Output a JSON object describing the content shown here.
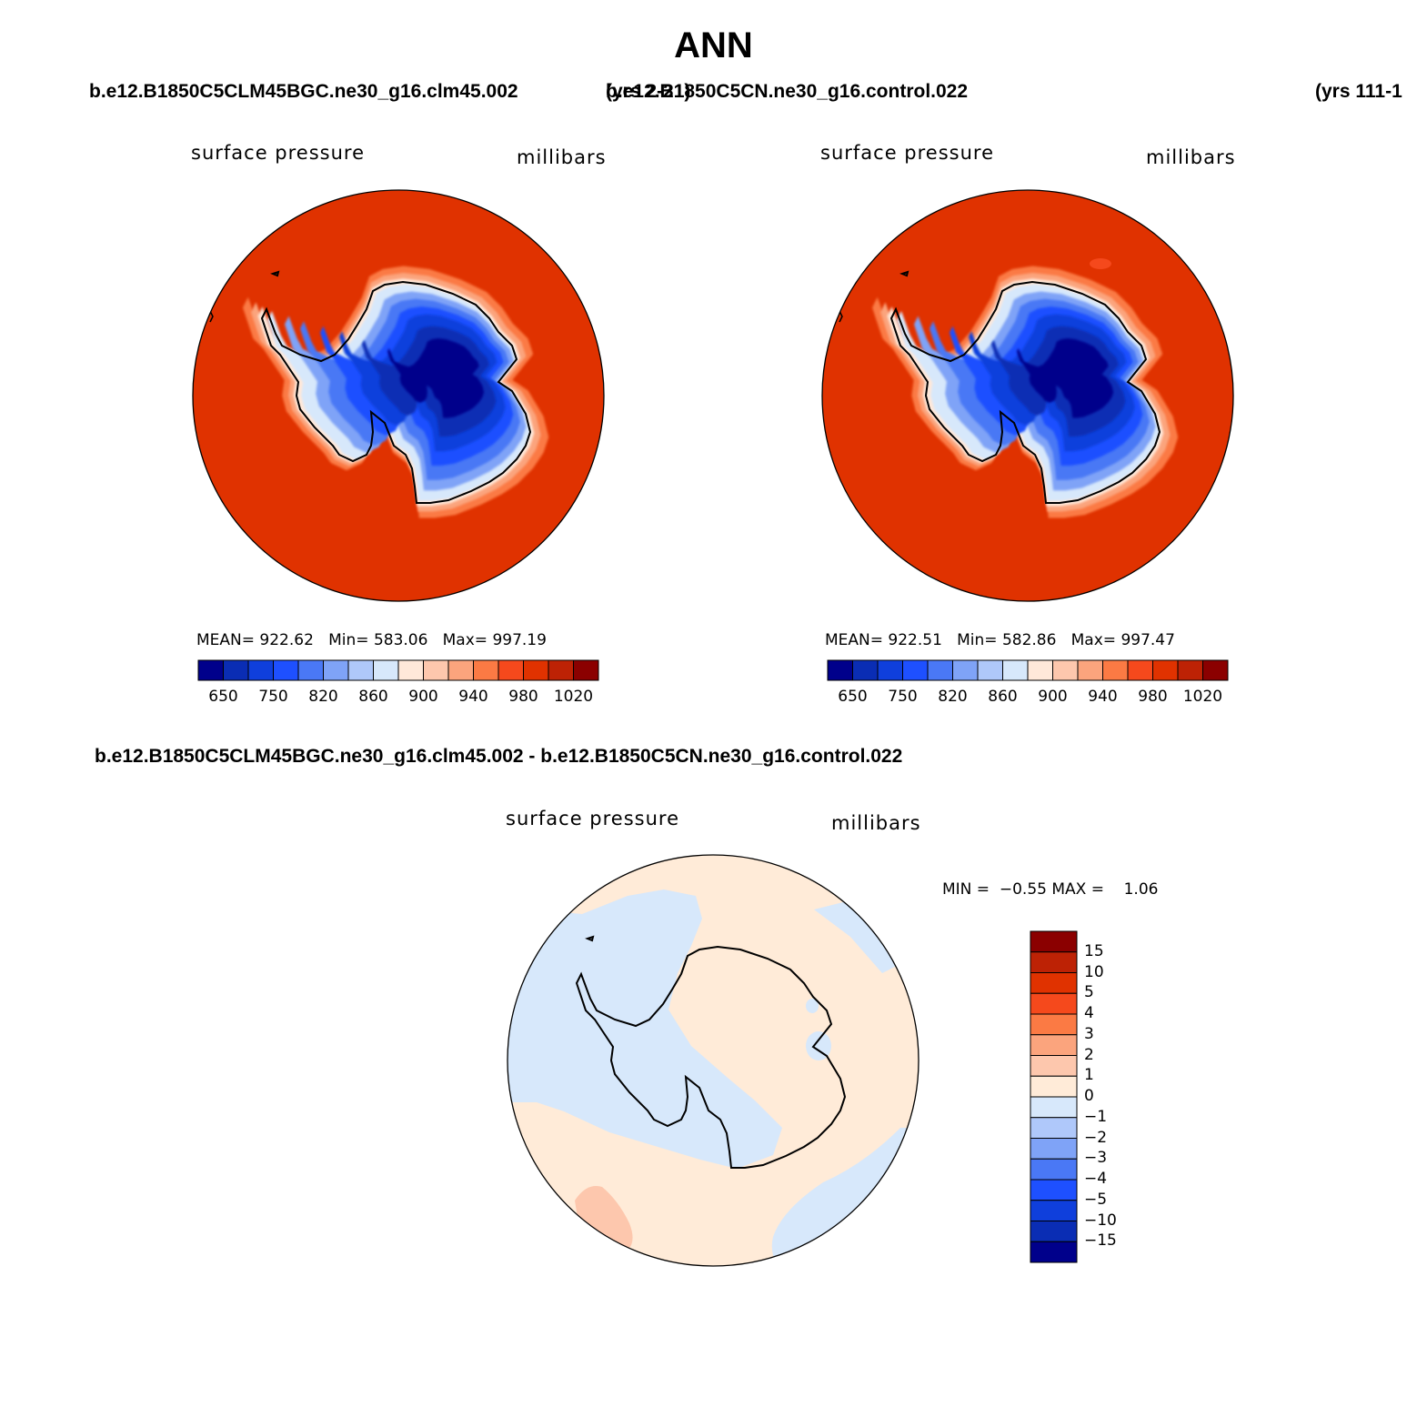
{
  "title": "ANN",
  "panels": [
    {
      "case_name": "b.e12.B1850C5CLM45BGC.ne30_g16.clm45.002",
      "years": "(yrs 2-21)",
      "field_label": "surface pressure",
      "units": "millibars",
      "stats": {
        "mean_label": "MEAN=",
        "mean": "922.62",
        "min_label": "Min=",
        "min": "583.06",
        "max_label": "Max=",
        "max": "997.19"
      },
      "colorbar_ticks": [
        "650",
        "750",
        "820",
        "860",
        "900",
        "940",
        "980",
        "1020"
      ]
    },
    {
      "case_name": "b.e12.B1850C5CN.ne30_g16.control.022",
      "years": "(yrs 111-1",
      "field_label": "surface pressure",
      "units": "millibars",
      "stats": {
        "mean_label": "MEAN=",
        "mean": "922.51",
        "min_label": "Min=",
        "min": "582.86",
        "max_label": "Max=",
        "max": "997.47"
      },
      "colorbar_ticks": [
        "650",
        "750",
        "820",
        "860",
        "900",
        "940",
        "980",
        "1020"
      ]
    }
  ],
  "difference": {
    "title": "b.e12.B1850C5CLM45BGC.ne30_g16.clm45.002 - b.e12.B1850C5CN.ne30_g16.control.022",
    "field_label": "surface pressure",
    "units": "millibars",
    "stats": {
      "min_label": "MIN =",
      "min": "−0.55",
      "max_label": "MAX =",
      "max": "1.06"
    },
    "colorbar_ticks": [
      "15",
      "10",
      "5",
      "4",
      "3",
      "2",
      "1",
      "0",
      "−1",
      "−2",
      "−3",
      "−4",
      "−5",
      "−10",
      "−15"
    ]
  },
  "colors": {
    "abs_palette": [
      "#00008b",
      "#0a2db4",
      "#0f3fdc",
      "#1e50ff",
      "#4a78f5",
      "#7fa3f7",
      "#afc8fa",
      "#d7e8fb",
      "#ffe8d9",
      "#fdc7ad",
      "#fba47d",
      "#fb7a44",
      "#f5491c",
      "#e03200",
      "#bd2205",
      "#8b0000"
    ],
    "diff_palette": [
      "#00008b",
      "#0a2db4",
      "#0f3fdc",
      "#1e50ff",
      "#4a78f5",
      "#7fa3f7",
      "#afc8fa",
      "#d7e8fb",
      "#ffebd8",
      "#fdc7ad",
      "#fba47d",
      "#fb7a44",
      "#f5491c",
      "#e03200",
      "#bd2205",
      "#8b0000"
    ],
    "ocean_abs": "#e03200",
    "diff_positive": "#ffebd8",
    "diff_negative": "#d7e8fb"
  }
}
